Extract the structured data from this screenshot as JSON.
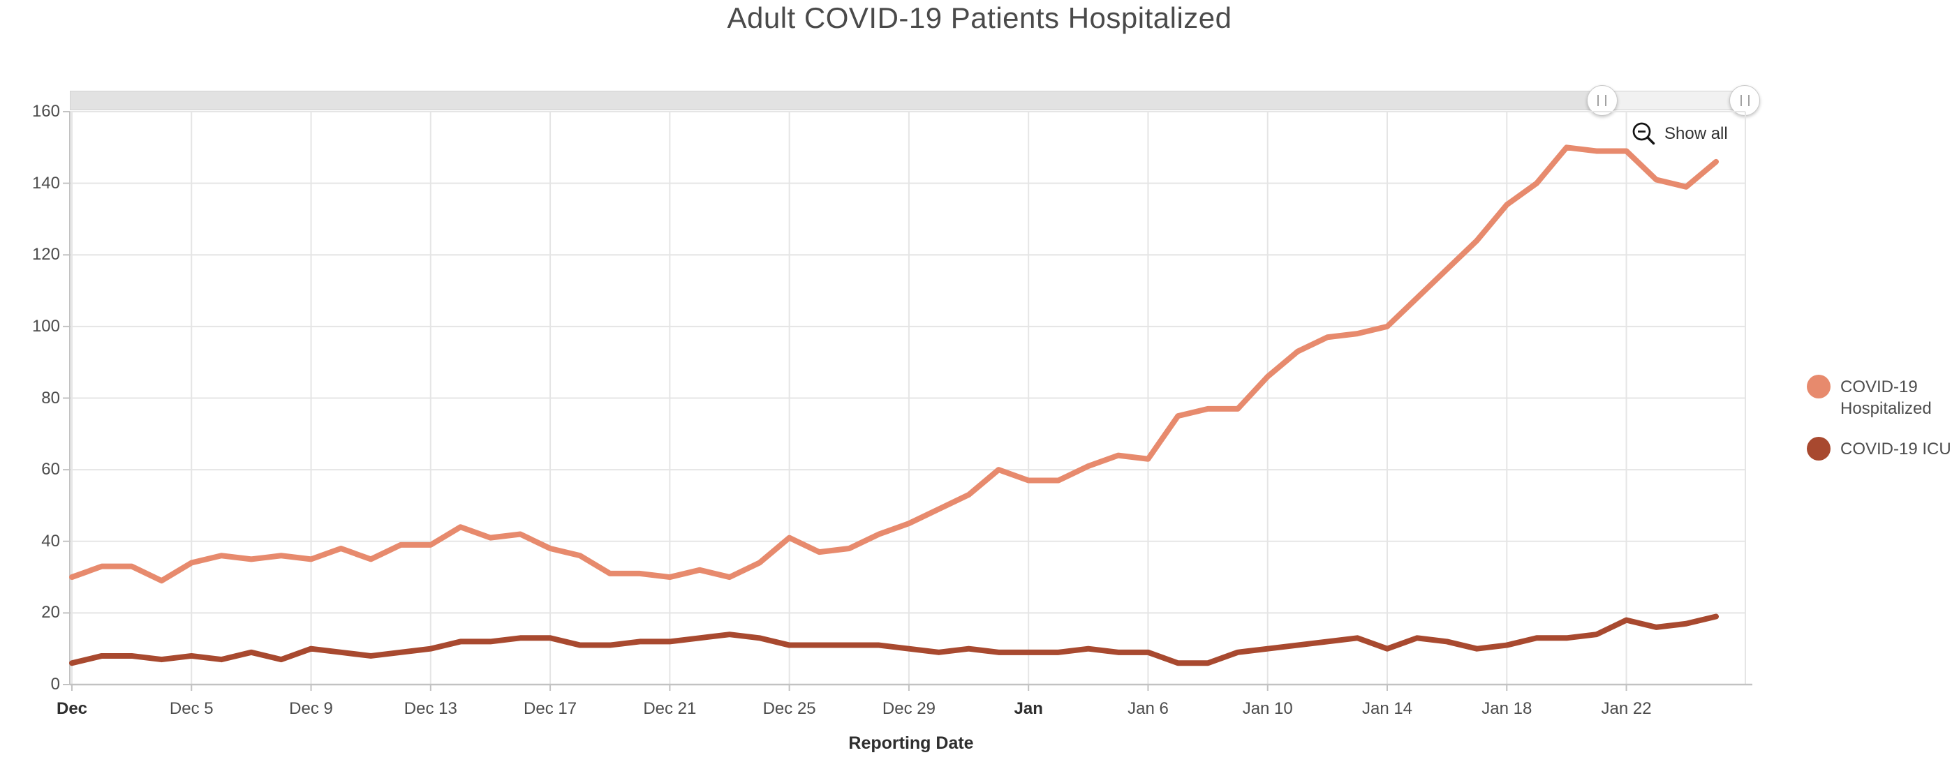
{
  "title": "Adult COVID-19 Patients Hospitalized",
  "toolbar": {
    "show_all_label": "Show all",
    "zoom_out_icon": "magnifier-minus-icon"
  },
  "slider": {
    "handles_pct": [
      91.1,
      99.6
    ]
  },
  "colors": {
    "hospitalized": "#E78A6D",
    "icu": "#A8492F",
    "title_text": "#4A4A4A",
    "tick_text": "#4D4D4D",
    "month_tick_text": "#2E2E2E",
    "gridline": "#E5E5E5",
    "axis_line": "#C2C2C2",
    "slider_track": "#E2E2E2",
    "slider_selected": "#F1F1F1"
  },
  "legend": {
    "items": [
      {
        "label": "COVID-19 Hospitalized",
        "color": "#E78A6D"
      },
      {
        "label": "COVID-19 ICU",
        "color": "#A8492F"
      }
    ]
  },
  "chart_data": {
    "type": "line",
    "title": "Adult COVID-19 Patients Hospitalized",
    "xlabel": "Reporting Date",
    "ylabel": "",
    "ylim": [
      0,
      160
    ],
    "yticks": [
      0,
      20,
      40,
      60,
      80,
      100,
      120,
      140,
      160
    ],
    "grid": true,
    "legend_position": "right",
    "x": [
      "Dec 1",
      "Dec 2",
      "Dec 3",
      "Dec 4",
      "Dec 5",
      "Dec 6",
      "Dec 7",
      "Dec 8",
      "Dec 9",
      "Dec 10",
      "Dec 11",
      "Dec 12",
      "Dec 13",
      "Dec 14",
      "Dec 15",
      "Dec 16",
      "Dec 17",
      "Dec 18",
      "Dec 19",
      "Dec 20",
      "Dec 21",
      "Dec 22",
      "Dec 23",
      "Dec 24",
      "Dec 25",
      "Dec 26",
      "Dec 27",
      "Dec 28",
      "Dec 29",
      "Dec 30",
      "Dec 31",
      "Jan 1",
      "Jan 2",
      "Jan 3",
      "Jan 4",
      "Jan 5",
      "Jan 6",
      "Jan 7",
      "Jan 8",
      "Jan 9",
      "Jan 10",
      "Jan 11",
      "Jan 12",
      "Jan 13",
      "Jan 14",
      "Jan 15",
      "Jan 16",
      "Jan 17",
      "Jan 18",
      "Jan 19",
      "Jan 20",
      "Jan 21",
      "Jan 22",
      "Jan 23",
      "Jan 24",
      "Jan 25"
    ],
    "xticks": [
      {
        "index": 0,
        "label": "Dec",
        "bold": true
      },
      {
        "index": 4,
        "label": "Dec 5",
        "bold": false
      },
      {
        "index": 8,
        "label": "Dec 9",
        "bold": false
      },
      {
        "index": 12,
        "label": "Dec 13",
        "bold": false
      },
      {
        "index": 16,
        "label": "Dec 17",
        "bold": false
      },
      {
        "index": 20,
        "label": "Dec 21",
        "bold": false
      },
      {
        "index": 24,
        "label": "Dec 25",
        "bold": false
      },
      {
        "index": 28,
        "label": "Dec 29",
        "bold": false
      },
      {
        "index": 32,
        "label": "Jan",
        "bold": true
      },
      {
        "index": 36,
        "label": "Jan 6",
        "bold": false
      },
      {
        "index": 40,
        "label": "Jan 10",
        "bold": false
      },
      {
        "index": 44,
        "label": "Jan 14",
        "bold": false
      },
      {
        "index": 48,
        "label": "Jan 18",
        "bold": false
      },
      {
        "index": 52,
        "label": "Jan 22",
        "bold": false
      }
    ],
    "series": [
      {
        "name": "COVID-19 Hospitalized",
        "color": "#E78A6D",
        "values": [
          30,
          33,
          33,
          29,
          34,
          36,
          35,
          36,
          35,
          38,
          35,
          39,
          39,
          44,
          41,
          42,
          38,
          36,
          31,
          31,
          30,
          32,
          30,
          34,
          41,
          37,
          38,
          42,
          45,
          49,
          53,
          60,
          57,
          57,
          61,
          64,
          63,
          75,
          77,
          77,
          86,
          93,
          97,
          98,
          100,
          108,
          116,
          124,
          134,
          140,
          150,
          149,
          149,
          141,
          139,
          146
        ]
      },
      {
        "name": "COVID-19 ICU",
        "color": "#A8492F",
        "values": [
          6,
          8,
          8,
          7,
          8,
          7,
          9,
          7,
          10,
          9,
          8,
          9,
          10,
          12,
          12,
          13,
          13,
          11,
          11,
          12,
          12,
          13,
          14,
          13,
          11,
          11,
          11,
          11,
          10,
          9,
          10,
          9,
          9,
          9,
          10,
          9,
          9,
          6,
          6,
          9,
          10,
          11,
          12,
          13,
          10,
          13,
          12,
          10,
          11,
          13,
          13,
          14,
          18,
          16,
          17,
          19
        ]
      }
    ]
  }
}
